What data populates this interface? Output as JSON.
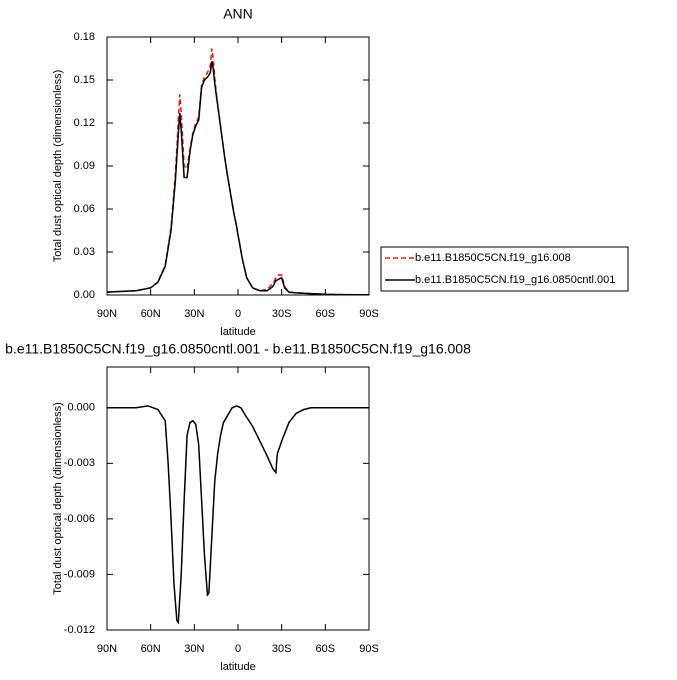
{
  "chart_data": [
    {
      "type": "line",
      "title": "ANN",
      "xlabel": "latitude",
      "ylabel": "Total dust optical depth (dimensionless)",
      "x": [
        90,
        80,
        70,
        60,
        55,
        50,
        46,
        43,
        41,
        40,
        39,
        37,
        35,
        33,
        31,
        29,
        27,
        25,
        23,
        21,
        19,
        18,
        17,
        16,
        15,
        13,
        11,
        9,
        7,
        5,
        3,
        1,
        0,
        -3,
        -6,
        -10,
        -15,
        -20,
        -24,
        -26,
        -28,
        -30,
        -32,
        -35,
        -40,
        -50,
        -60,
        -70,
        -80,
        -90
      ],
      "series": [
        {
          "name": "b.e11.B1850C5CN.f19_g16.008",
          "color": "#e41a1c",
          "dash": "dashed",
          "values": [
            0.002,
            0.0025,
            0.003,
            0.005,
            0.009,
            0.021,
            0.047,
            0.085,
            0.122,
            0.14,
            0.127,
            0.09,
            0.088,
            0.102,
            0.113,
            0.12,
            0.124,
            0.147,
            0.152,
            0.155,
            0.16,
            0.172,
            0.165,
            0.152,
            0.142,
            0.126,
            0.11,
            0.095,
            0.082,
            0.07,
            0.058,
            0.048,
            0.042,
            0.025,
            0.012,
            0.005,
            0.003,
            0.004,
            0.008,
            0.012,
            0.014,
            0.014,
            0.006,
            0.002,
            0.0015,
            0.001,
            0.0005,
            0.0003,
            0.0002,
            0.0002
          ]
        },
        {
          "name": "b.e11.B1850C5CN.f19_g16.0850cntl.001",
          "color": "#000000",
          "dash": "solid",
          "values": [
            0.002,
            0.0025,
            0.003,
            0.005,
            0.009,
            0.02,
            0.045,
            0.08,
            0.112,
            0.127,
            0.115,
            0.082,
            0.082,
            0.1,
            0.112,
            0.118,
            0.122,
            0.145,
            0.15,
            0.152,
            0.155,
            0.163,
            0.158,
            0.148,
            0.14,
            0.125,
            0.11,
            0.095,
            0.082,
            0.07,
            0.058,
            0.048,
            0.042,
            0.025,
            0.012,
            0.005,
            0.003,
            0.003,
            0.006,
            0.01,
            0.011,
            0.012,
            0.005,
            0.002,
            0.0015,
            0.001,
            0.0005,
            0.0003,
            0.0002,
            0.0002
          ]
        }
      ],
      "xlim": [
        90,
        -90
      ],
      "xticks": [
        {
          "value": 90,
          "label": "90N"
        },
        {
          "value": 60,
          "label": "60N"
        },
        {
          "value": 30,
          "label": "30N"
        },
        0,
        {
          "value": -30,
          "label": "30S"
        },
        {
          "value": -60,
          "label": "60S"
        },
        {
          "value": -90,
          "label": "90S"
        }
      ],
      "ylim": [
        0,
        0.18
      ],
      "yticks": [
        {
          "value": 0,
          "label": "0.00"
        },
        0.03,
        0.06,
        0.09,
        0.12,
        0.15,
        0.18
      ],
      "legend": "right"
    },
    {
      "type": "line",
      "title": "b.e11.B1850C5CN.f19_g16.0850cntl.001 - b.e11.B1850C5CN.f19_g16.008",
      "xlabel": "latitude",
      "ylabel": "Total dust optical depth (dimensionless)",
      "x": [
        90,
        80,
        70,
        62,
        60,
        55,
        50,
        48,
        46,
        44,
        42,
        41,
        39,
        37,
        35,
        33,
        31,
        29,
        27,
        25,
        23,
        21,
        20,
        18,
        16,
        14,
        12,
        10,
        7,
        4,
        1,
        -2,
        -5,
        -10,
        -15,
        -20,
        -24,
        -26,
        -27,
        -30,
        -35,
        -40,
        -45,
        -50,
        -60,
        -70,
        -90
      ],
      "series": [
        {
          "color": "#000000",
          "dash": "solid",
          "values": [
            0,
            0,
            0,
            0.0001,
            5e-05,
            -0.0001,
            -0.0007,
            -0.003,
            -0.006,
            -0.0095,
            -0.0115,
            -0.0116,
            -0.009,
            -0.005,
            -0.0015,
            -0.0008,
            -0.0007,
            -0.0009,
            -0.002,
            -0.005,
            -0.008,
            -0.0101,
            -0.01,
            -0.007,
            -0.004,
            -0.0025,
            -0.0015,
            -0.0008,
            -0.0004,
            0,
            0.0001,
            0,
            -0.0004,
            -0.001,
            -0.0018,
            -0.0026,
            -0.0033,
            -0.0035,
            -0.0025,
            -0.0018,
            -0.0008,
            -0.0003,
            -0.0001,
            0,
            0,
            0,
            0
          ]
        }
      ],
      "xlim": [
        90,
        -90
      ],
      "xticks": [
        {
          "value": 90,
          "label": "90N"
        },
        {
          "value": 60,
          "label": "60N"
        },
        {
          "value": 30,
          "label": "30N"
        },
        0,
        {
          "value": -30,
          "label": "30S"
        },
        {
          "value": -60,
          "label": "60S"
        },
        {
          "value": -90,
          "label": "90S"
        }
      ],
      "ylim": [
        -0.012,
        0.0022
      ],
      "yticks": [
        {
          "value": -0.012,
          "label": "-0.012"
        },
        -0.009,
        -0.006,
        -0.003,
        {
          "value": 0,
          "label": "0.000"
        }
      ]
    }
  ]
}
